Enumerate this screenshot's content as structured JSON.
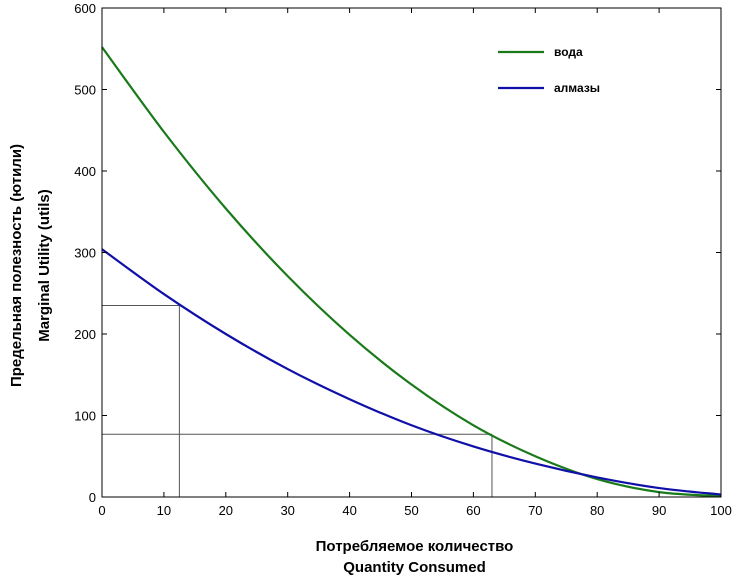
{
  "chart_data": {
    "type": "line",
    "title": "",
    "xlabel_lines": [
      "Потребляемое количество",
      "Quantity Consumed"
    ],
    "ylabel_lines": [
      "Предельная полезность (ютили)",
      "Marginal Utility (utils)"
    ],
    "xlim": [
      0,
      100
    ],
    "ylim": [
      0,
      600
    ],
    "xticks": [
      0,
      10,
      20,
      30,
      40,
      50,
      60,
      70,
      80,
      90,
      100
    ],
    "yticks": [
      0,
      100,
      200,
      300,
      400,
      500,
      600
    ],
    "grid": false,
    "legend_position": "top-right",
    "x": [
      0,
      10,
      20,
      30,
      40,
      50,
      60,
      70,
      80,
      90,
      100
    ],
    "series": [
      {
        "name": "вода",
        "color": "#1a7a1a",
        "values": [
          552,
          448,
          354,
          271,
          199,
          138,
          88,
          50,
          22,
          6,
          1
        ]
      },
      {
        "name": "алмазы",
        "color": "#1010a8",
        "values": [
          304,
          249,
          200,
          157,
          120,
          88,
          62,
          41,
          24,
          11,
          3
        ]
      }
    ],
    "reference_lines": [
      {
        "x": 12.5,
        "y": 235
      },
      {
        "x": 63,
        "y": 77
      }
    ]
  }
}
